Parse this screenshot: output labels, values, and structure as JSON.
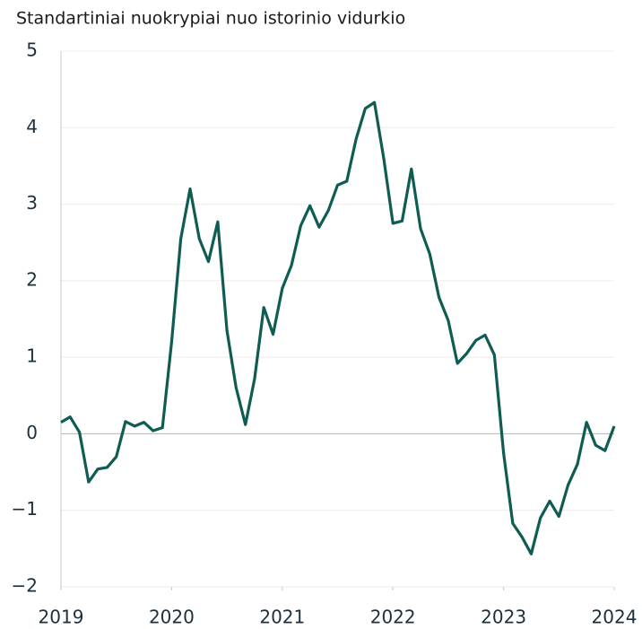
{
  "chart_data": {
    "type": "line",
    "title": "Standartiniai nuokrypiai nuo istorinio vidurkio",
    "x": [
      2019,
      2019.083,
      2019.167,
      2019.25,
      2019.333,
      2019.417,
      2019.5,
      2019.583,
      2019.667,
      2019.75,
      2019.833,
      2019.917,
      2020,
      2020.083,
      2020.167,
      2020.25,
      2020.333,
      2020.417,
      2020.5,
      2020.583,
      2020.667,
      2020.75,
      2020.833,
      2020.917,
      2021,
      2021.083,
      2021.167,
      2021.25,
      2021.333,
      2021.417,
      2021.5,
      2021.583,
      2021.667,
      2021.75,
      2021.833,
      2021.917,
      2022,
      2022.083,
      2022.167,
      2022.25,
      2022.333,
      2022.417,
      2022.5,
      2022.583,
      2022.667,
      2022.75,
      2022.833,
      2022.917,
      2023,
      2023.083,
      2023.167,
      2023.25,
      2023.333,
      2023.417,
      2023.5,
      2023.583,
      2023.667,
      2023.75,
      2023.833,
      2023.917,
      2024
    ],
    "series": [
      {
        "color": "#0f5c52",
        "values": [
          0.15,
          0.22,
          0.02,
          -0.63,
          -0.46,
          -0.44,
          -0.3,
          0.16,
          0.1,
          0.15,
          0.04,
          0.08,
          1.2,
          2.55,
          3.2,
          2.55,
          2.25,
          2.77,
          1.35,
          0.6,
          0.12,
          0.72,
          1.65,
          1.3,
          1.9,
          2.2,
          2.72,
          2.98,
          2.7,
          2.92,
          3.25,
          3.3,
          3.85,
          4.25,
          4.33,
          3.6,
          2.75,
          2.78,
          3.46,
          2.68,
          2.35,
          1.78,
          1.48,
          0.92,
          1.05,
          1.22,
          1.29,
          1.03,
          -0.25,
          -1.17,
          -1.35,
          -1.57,
          -1.1,
          -0.88,
          -1.08,
          -0.67,
          -0.4,
          0.15,
          -0.15,
          -0.22,
          0.1
        ]
      }
    ],
    "xlim": [
      2019,
      2024
    ],
    "xticks": [
      2019,
      2020,
      2021,
      2022,
      2023,
      2024
    ],
    "ylim": [
      -2,
      5
    ],
    "yticks": [
      {
        "value": -2,
        "label": "−2"
      },
      {
        "value": -1,
        "label": "−1"
      },
      0,
      1,
      2,
      3,
      4,
      5
    ],
    "grid": true
  }
}
